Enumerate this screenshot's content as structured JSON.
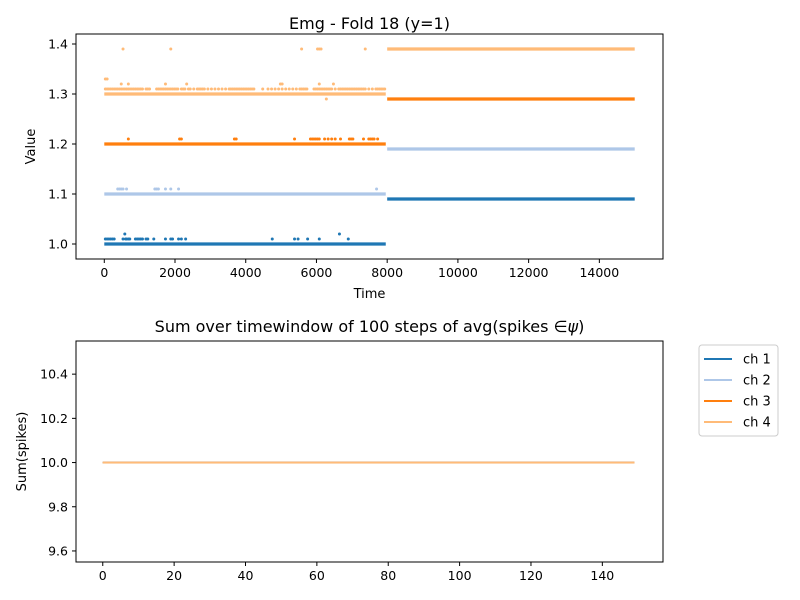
{
  "chart_data": [
    {
      "type": "scatter",
      "title": "Emg - Fold 18 (y=1)",
      "xlabel": "Time",
      "ylabel": "Value",
      "xlim": [
        -800,
        15800
      ],
      "ylim": [
        0.97,
        1.42
      ],
      "xticks": [
        0,
        2000,
        4000,
        6000,
        8000,
        10000,
        12000,
        14000
      ],
      "yticks": [
        1.0,
        1.1,
        1.2,
        1.3,
        1.4
      ],
      "grid": false,
      "series": [
        {
          "name": "ch 1",
          "color": "#1f77b4",
          "segments": [
            {
              "x_start": 0,
              "x_end": 7960,
              "y": 1.0
            },
            {
              "x_start": 8000,
              "x_end": 15000,
              "y": 1.09
            }
          ],
          "outliers": [
            [
              30,
              1.01
            ],
            [
              80,
              1.01
            ],
            [
              130,
              1.01
            ],
            [
              180,
              1.01
            ],
            [
              230,
              1.01
            ],
            [
              280,
              1.01
            ],
            [
              530,
              1.01
            ],
            [
              580,
              1.02
            ],
            [
              600,
              1.01
            ],
            [
              630,
              1.01
            ],
            [
              680,
              1.01
            ],
            [
              720,
              1.01
            ],
            [
              880,
              1.01
            ],
            [
              930,
              1.01
            ],
            [
              980,
              1.01
            ],
            [
              1030,
              1.01
            ],
            [
              1080,
              1.01
            ],
            [
              1180,
              1.01
            ],
            [
              1230,
              1.01
            ],
            [
              1400,
              1.01
            ],
            [
              1730,
              1.01
            ],
            [
              1880,
              1.01
            ],
            [
              1930,
              1.01
            ],
            [
              2100,
              1.01
            ],
            [
              2180,
              1.01
            ],
            [
              2300,
              1.01
            ],
            [
              4750,
              1.01
            ],
            [
              5380,
              1.01
            ],
            [
              5480,
              1.01
            ],
            [
              5750,
              1.01
            ],
            [
              6080,
              1.01
            ],
            [
              6650,
              1.02
            ],
            [
              6900,
              1.01
            ]
          ]
        },
        {
          "name": "ch 2",
          "color": "#aec7e8",
          "segments": [
            {
              "x_start": 0,
              "x_end": 7960,
              "y": 1.1
            },
            {
              "x_start": 8000,
              "x_end": 15000,
              "y": 1.19
            }
          ],
          "outliers": [
            [
              380,
              1.11
            ],
            [
              430,
              1.11
            ],
            [
              480,
              1.11
            ],
            [
              530,
              1.11
            ],
            [
              630,
              1.11
            ],
            [
              1430,
              1.11
            ],
            [
              1480,
              1.11
            ],
            [
              1530,
              1.11
            ],
            [
              1730,
              1.11
            ],
            [
              1880,
              1.11
            ],
            [
              2100,
              1.11
            ],
            [
              7700,
              1.11
            ]
          ]
        },
        {
          "name": "ch 3",
          "color": "#ff7f0e",
          "segments": [
            {
              "x_start": 0,
              "x_end": 7960,
              "y": 1.2
            },
            {
              "x_start": 8000,
              "x_end": 15000,
              "y": 1.29
            }
          ],
          "outliers": [
            [
              680,
              1.21
            ],
            [
              2130,
              1.21
            ],
            [
              2180,
              1.21
            ],
            [
              3680,
              1.21
            ],
            [
              3730,
              1.21
            ],
            [
              5380,
              1.21
            ],
            [
              5830,
              1.21
            ],
            [
              5880,
              1.21
            ],
            [
              5930,
              1.21
            ],
            [
              5980,
              1.21
            ],
            [
              6030,
              1.21
            ],
            [
              6080,
              1.21
            ],
            [
              6230,
              1.21
            ],
            [
              6330,
              1.21
            ],
            [
              6430,
              1.21
            ],
            [
              6530,
              1.21
            ],
            [
              6680,
              1.21
            ],
            [
              6930,
              1.21
            ],
            [
              6980,
              1.21
            ],
            [
              7030,
              1.21
            ],
            [
              7330,
              1.21
            ],
            [
              7480,
              1.21
            ],
            [
              7530,
              1.21
            ],
            [
              7580,
              1.21
            ],
            [
              7630,
              1.21
            ],
            [
              7730,
              1.21
            ]
          ]
        },
        {
          "name": "ch 4",
          "color": "#ffbb78",
          "segments": [
            {
              "x_start": 0,
              "x_end": 7960,
              "y": 1.3
            },
            {
              "x_start": 8000,
              "x_end": 15000,
              "y": 1.39
            }
          ],
          "outliers": [
            [
              30,
              1.31
            ],
            [
              80,
              1.31
            ],
            [
              130,
              1.31
            ],
            [
              180,
              1.31
            ],
            [
              230,
              1.31
            ],
            [
              280,
              1.31
            ],
            [
              330,
              1.31
            ],
            [
              380,
              1.31
            ],
            [
              430,
              1.31
            ],
            [
              480,
              1.31
            ],
            [
              530,
              1.31
            ],
            [
              580,
              1.31
            ],
            [
              630,
              1.31
            ],
            [
              680,
              1.31
            ],
            [
              730,
              1.31
            ],
            [
              780,
              1.31
            ],
            [
              830,
              1.31
            ],
            [
              880,
              1.31
            ],
            [
              930,
              1.31
            ],
            [
              980,
              1.31
            ],
            [
              1030,
              1.31
            ],
            [
              1080,
              1.31
            ],
            [
              1180,
              1.31
            ],
            [
              1230,
              1.31
            ],
            [
              1280,
              1.31
            ],
            [
              1480,
              1.31
            ],
            [
              1530,
              1.31
            ],
            [
              1580,
              1.31
            ],
            [
              1630,
              1.31
            ],
            [
              1680,
              1.31
            ],
            [
              1730,
              1.31
            ],
            [
              1780,
              1.31
            ],
            [
              1830,
              1.31
            ],
            [
              1880,
              1.31
            ],
            [
              1930,
              1.31
            ],
            [
              1980,
              1.31
            ],
            [
              2030,
              1.31
            ],
            [
              2080,
              1.31
            ],
            [
              2180,
              1.31
            ],
            [
              2230,
              1.31
            ],
            [
              2280,
              1.31
            ],
            [
              2380,
              1.31
            ],
            [
              2430,
              1.31
            ],
            [
              2530,
              1.31
            ],
            [
              2630,
              1.31
            ],
            [
              2680,
              1.31
            ],
            [
              2730,
              1.31
            ],
            [
              2780,
              1.31
            ],
            [
              2830,
              1.31
            ],
            [
              2930,
              1.31
            ],
            [
              3030,
              1.31
            ],
            [
              3130,
              1.31
            ],
            [
              3230,
              1.31
            ],
            [
              3330,
              1.31
            ],
            [
              3430,
              1.31
            ],
            [
              3530,
              1.31
            ],
            [
              3580,
              1.31
            ],
            [
              3630,
              1.31
            ],
            [
              3680,
              1.31
            ],
            [
              3730,
              1.31
            ],
            [
              3780,
              1.31
            ],
            [
              3830,
              1.31
            ],
            [
              3880,
              1.31
            ],
            [
              3930,
              1.31
            ],
            [
              3980,
              1.31
            ],
            [
              4030,
              1.31
            ],
            [
              4080,
              1.31
            ],
            [
              4130,
              1.31
            ],
            [
              4180,
              1.31
            ],
            [
              4230,
              1.31
            ],
            [
              4480,
              1.31
            ],
            [
              4630,
              1.31
            ],
            [
              4730,
              1.31
            ],
            [
              4830,
              1.31
            ],
            [
              4930,
              1.31
            ],
            [
              5030,
              1.31
            ],
            [
              5130,
              1.31
            ],
            [
              5230,
              1.31
            ],
            [
              5330,
              1.31
            ],
            [
              5430,
              1.31
            ],
            [
              5530,
              1.31
            ],
            [
              5580,
              1.31
            ],
            [
              5630,
              1.31
            ],
            [
              5680,
              1.31
            ],
            [
              5730,
              1.31
            ],
            [
              5930,
              1.31
            ],
            [
              5980,
              1.31
            ],
            [
              6030,
              1.31
            ],
            [
              6080,
              1.31
            ],
            [
              6130,
              1.31
            ],
            [
              6180,
              1.31
            ],
            [
              6230,
              1.31
            ],
            [
              6280,
              1.31
            ],
            [
              6330,
              1.31
            ],
            [
              6380,
              1.31
            ],
            [
              6430,
              1.31
            ],
            [
              6530,
              1.31
            ],
            [
              6630,
              1.31
            ],
            [
              6680,
              1.31
            ],
            [
              6730,
              1.31
            ],
            [
              6780,
              1.31
            ],
            [
              6830,
              1.31
            ],
            [
              6880,
              1.31
            ],
            [
              6930,
              1.31
            ],
            [
              6980,
              1.31
            ],
            [
              7030,
              1.31
            ],
            [
              7080,
              1.31
            ],
            [
              7130,
              1.31
            ],
            [
              7180,
              1.31
            ],
            [
              7230,
              1.31
            ],
            [
              7280,
              1.31
            ],
            [
              7330,
              1.31
            ],
            [
              7380,
              1.31
            ],
            [
              7480,
              1.31
            ],
            [
              7580,
              1.31
            ],
            [
              7680,
              1.31
            ],
            [
              7730,
              1.31
            ],
            [
              7780,
              1.31
            ],
            [
              7830,
              1.31
            ],
            [
              7880,
              1.31
            ],
            [
              7930,
              1.31
            ],
            [
              30,
              1.33
            ],
            [
              80,
              1.33
            ],
            [
              480,
              1.32
            ],
            [
              680,
              1.32
            ],
            [
              1730,
              1.32
            ],
            [
              2330,
              1.32
            ],
            [
              4980,
              1.32
            ],
            [
              5030,
              1.32
            ],
            [
              6080,
              1.32
            ],
            [
              6480,
              1.32
            ],
            [
              6280,
              1.29
            ],
            [
              530,
              1.39
            ],
            [
              1880,
              1.39
            ],
            [
              5580,
              1.39
            ],
            [
              6030,
              1.39
            ],
            [
              6080,
              1.39
            ],
            [
              6130,
              1.39
            ],
            [
              7380,
              1.39
            ]
          ]
        }
      ]
    },
    {
      "type": "line",
      "title": "Sum over timewindow of 100 steps of avg(spikes $\\in\\psi$)",
      "title_parts": [
        "Sum over timewindow of 100 steps of avg(spikes ",
        "∈",
        "ψ",
        ")"
      ],
      "xlabel": "",
      "ylabel": "Sum(spikes)",
      "xlim": [
        -7.5,
        157
      ],
      "ylim": [
        9.55,
        10.55
      ],
      "xticks": [
        0,
        20,
        40,
        60,
        80,
        100,
        120,
        140
      ],
      "yticks": [
        9.6,
        9.8,
        10.0,
        10.2,
        10.4
      ],
      "ytick_labels": [
        "9.6",
        "9.8",
        "10.0",
        "10.2",
        "10.4"
      ],
      "grid": false,
      "legend": "outside-right",
      "series": [
        {
          "name": "ch 1",
          "color": "#1f77b4",
          "x_range": [
            0,
            149
          ],
          "value": 10.0
        },
        {
          "name": "ch 2",
          "color": "#aec7e8",
          "x_range": [
            0,
            149
          ],
          "value": 10.0
        },
        {
          "name": "ch 3",
          "color": "#ff7f0e",
          "x_range": [
            0,
            149
          ],
          "value": 10.0
        },
        {
          "name": "ch 4",
          "color": "#ffbb78",
          "x_range": [
            0,
            149
          ],
          "value": 10.0
        }
      ]
    }
  ]
}
